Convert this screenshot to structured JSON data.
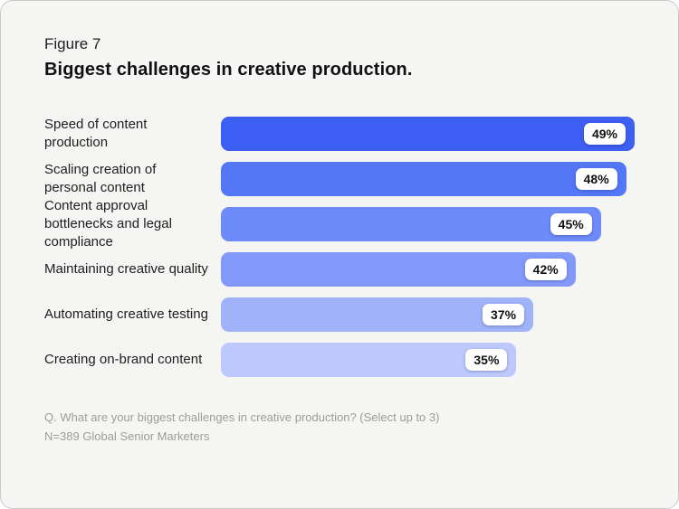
{
  "card": {
    "figure_label": "Figure 7",
    "title": "Biggest challenges in creative production.",
    "footnote_question": "Q. What are your biggest challenges in creative production? (Select up to 3)",
    "footnote_sample": "N=389 Global Senior Marketers"
  },
  "colors": {
    "card_background": "#f5f5f3",
    "title_text": "#111111",
    "label_text": "#1e1e1e",
    "footnote_text": "#9c9c9a",
    "badge_background": "#ffffff",
    "badge_text": "#111111"
  },
  "chart_data": {
    "type": "bar",
    "orientation": "horizontal",
    "title": "Biggest challenges in creative production.",
    "categories": [
      "Speed of content production",
      "Scaling creation of personal content",
      "Content approval bottlenecks and legal compliance",
      "Maintaining creative quality",
      "Automating creative testing",
      "Creating on-brand content"
    ],
    "values": [
      49,
      48,
      45,
      42,
      37,
      35
    ],
    "value_labels": [
      "49%",
      "48%",
      "45%",
      "42%",
      "37%",
      "35%"
    ],
    "value_suffix": "%",
    "xlim": [
      0,
      49
    ],
    "grid": false,
    "legend": false,
    "data_labels_position": "inside-end-badge",
    "bar_colors": [
      "#3d5ff3",
      "#5377f7",
      "#6c8af8",
      "#8399f9",
      "#9fb2fa",
      "#bdc9fc"
    ]
  }
}
